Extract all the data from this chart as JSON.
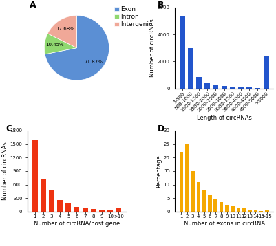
{
  "pie": {
    "labels": [
      "Exon",
      "Intron",
      "Intergenic"
    ],
    "values": [
      71.87,
      10.45,
      17.68
    ],
    "colors": [
      "#5B8FD4",
      "#90D870",
      "#F0A898"
    ],
    "pct_labels": [
      "71.87%",
      "10.45%",
      "17.68%"
    ]
  },
  "bar_b": {
    "categories": [
      "1-500",
      "500-1000",
      "1000-1500",
      "1500-2000",
      "2000-2500",
      "2500-3000",
      "3000-3500",
      "3500-4000",
      "4000-4500",
      "4500-5000",
      ">5000"
    ],
    "values": [
      5400,
      3000,
      850,
      380,
      230,
      190,
      130,
      130,
      80,
      50,
      2450
    ],
    "color": "#2255CC",
    "ylabel": "Number of circRNAs",
    "xlabel": "Length of circRNAs",
    "yticks": [
      0,
      2000,
      4000,
      6000
    ],
    "ylim": 6000
  },
  "bar_c": {
    "categories": [
      "1",
      "2",
      "3",
      "4",
      "5",
      "6",
      "7",
      "8",
      "9",
      "10",
      ">10"
    ],
    "values": [
      1580,
      730,
      490,
      260,
      175,
      110,
      75,
      65,
      40,
      38,
      80
    ],
    "color": "#EE3311",
    "ylabel": "Number of circRNAs",
    "xlabel": "Number of circRNA/host gene",
    "yticks": [
      0,
      300,
      600,
      900,
      1200,
      1500,
      1800
    ],
    "ylim": 1800
  },
  "bar_d": {
    "categories": [
      "1",
      "2",
      "3",
      "4",
      "5",
      "6",
      "7",
      "8",
      "9",
      "10",
      "11",
      "12",
      "13",
      "14",
      "15",
      ">15"
    ],
    "values": [
      22,
      25,
      15,
      11,
      8,
      6,
      4.5,
      3.5,
      2.5,
      2,
      1.5,
      1.2,
      0.8,
      0.5,
      0.3,
      0.4
    ],
    "color": "#F5A800",
    "ylabel": "Percentage",
    "xlabel": "Number of exons in circRNA",
    "yticks": [
      0,
      5,
      10,
      15,
      20,
      25,
      30
    ],
    "ylim": 30
  },
  "label_fontsize": 9,
  "tick_fontsize": 5,
  "axis_label_fontsize": 6,
  "legend_fontsize": 6.5
}
